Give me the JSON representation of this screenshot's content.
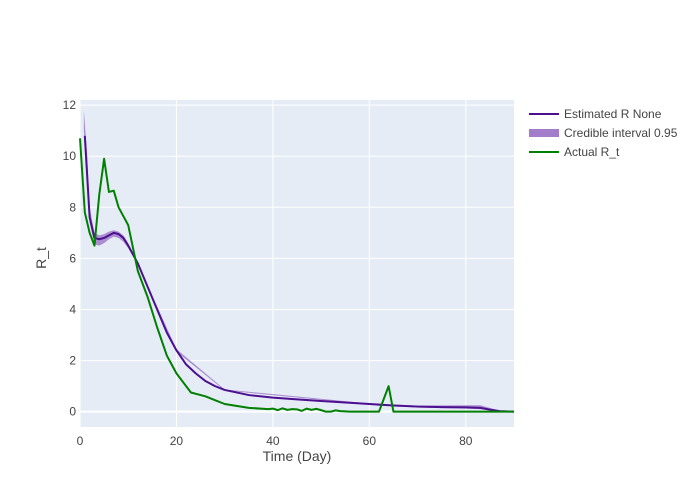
{
  "chart_data": {
    "type": "line",
    "title": "",
    "xlabel": "Time (Day)",
    "ylabel": "R_t",
    "xlim": [
      0,
      90
    ],
    "ylim": [
      -0.6,
      12.2
    ],
    "x_ticks": [
      0,
      20,
      40,
      60,
      80
    ],
    "y_ticks": [
      0,
      2,
      4,
      6,
      8,
      10,
      12
    ],
    "grid": true,
    "legend_position": "right",
    "series": [
      {
        "name": "Estimated R None",
        "color": "#4b0f8f",
        "x": [
          1,
          2,
          3,
          4,
          5,
          6,
          7,
          8,
          9,
          10,
          12,
          14,
          16,
          18,
          20,
          22,
          24,
          26,
          28,
          30,
          35,
          40,
          45,
          50,
          55,
          60,
          65,
          70,
          75,
          80,
          83,
          85,
          87,
          90
        ],
        "y": [
          10.8,
          7.6,
          6.8,
          6.75,
          6.8,
          6.9,
          7.0,
          6.95,
          6.8,
          6.5,
          5.8,
          4.9,
          4.0,
          3.1,
          2.4,
          1.85,
          1.5,
          1.2,
          1.0,
          0.85,
          0.65,
          0.55,
          0.48,
          0.42,
          0.36,
          0.3,
          0.24,
          0.2,
          0.18,
          0.17,
          0.15,
          0.08,
          0.02,
          0.0
        ]
      },
      {
        "name": "Credible interval 0.95",
        "color": "#a27dc9",
        "x": [
          0.8,
          1.5,
          2,
          3,
          4,
          5,
          6,
          7,
          8,
          9,
          10,
          12,
          14,
          20,
          30,
          60,
          70,
          80,
          83,
          85,
          87
        ],
        "upper": [
          11.8,
          10.0,
          8.0,
          7.0,
          6.9,
          6.95,
          7.05,
          7.1,
          7.05,
          6.9,
          6.6,
          5.85,
          4.95,
          2.45,
          0.87,
          0.32,
          0.24,
          0.25,
          0.25,
          0.15,
          0.04
        ],
        "lower": [
          11.0,
          9.2,
          7.4,
          6.55,
          6.5,
          6.6,
          6.75,
          6.85,
          6.8,
          6.65,
          6.4,
          5.75,
          4.85,
          2.35,
          0.83,
          0.28,
          0.16,
          0.12,
          0.1,
          0.05,
          0.0
        ]
      },
      {
        "name": "Actual R_t",
        "color": "#008000",
        "x": [
          0,
          1,
          2,
          3,
          4,
          5,
          6,
          7,
          8,
          10,
          12,
          14,
          16,
          18,
          20,
          23,
          26,
          28,
          30,
          35,
          39,
          40,
          41,
          42,
          43,
          44,
          45,
          46,
          47,
          48,
          49,
          50,
          51,
          52,
          53,
          54,
          56,
          58,
          60,
          62,
          63,
          64,
          65,
          70,
          75,
          80,
          85,
          90
        ],
        "y": [
          10.7,
          7.8,
          7.0,
          6.5,
          8.5,
          9.9,
          8.6,
          8.65,
          8.0,
          7.3,
          5.5,
          4.5,
          3.3,
          2.2,
          1.5,
          0.75,
          0.6,
          0.45,
          0.3,
          0.15,
          0.1,
          0.12,
          0.06,
          0.13,
          0.07,
          0.1,
          0.09,
          0.03,
          0.12,
          0.07,
          0.11,
          0.06,
          0.0,
          0.0,
          0.05,
          0.02,
          0.0,
          0.0,
          0.0,
          0.0,
          0.5,
          1.0,
          0.0,
          0.0,
          0.0,
          0.0,
          0.0,
          0.0
        ]
      }
    ]
  }
}
